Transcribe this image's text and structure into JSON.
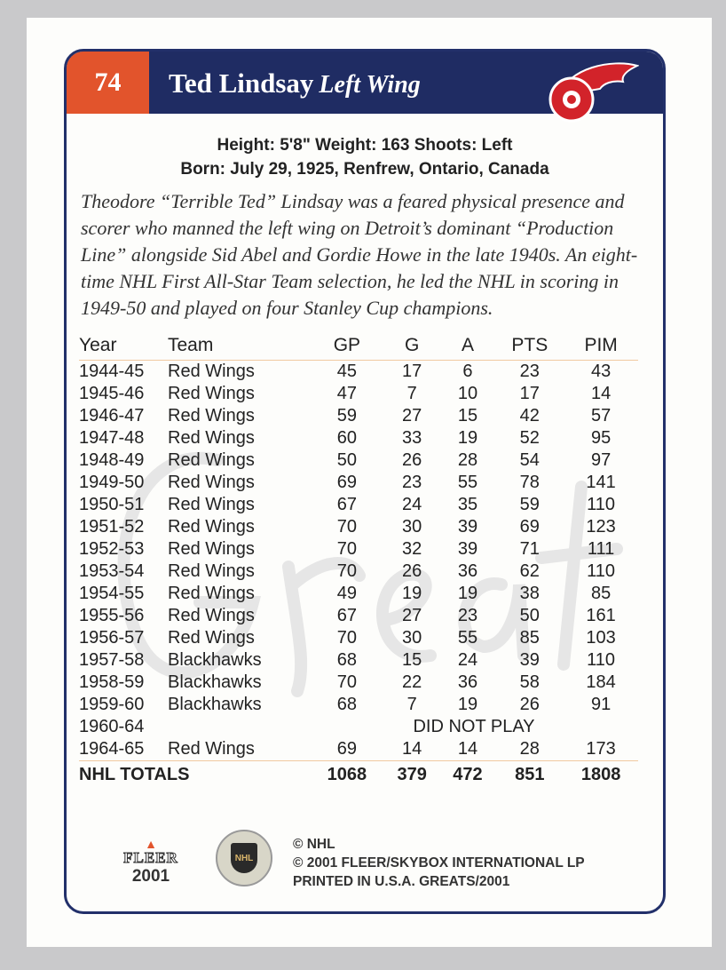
{
  "card": {
    "number": "74",
    "player_name": "Ted Lindsay",
    "position": "Left Wing",
    "info_line1": "Height: 5'8\"   Weight: 163   Shoots: Left",
    "info_line2": "Born: July 29, 1925, Renfrew, Ontario, Canada",
    "bio": "Theodore “Terrible Ted” Lindsay was a feared physical presence and scorer who manned the left wing on Detroit’s dominant “Production Line” alongside Sid Abel and Gordie Howe in the late 1940s. An eight-time NHL First All-Star Team selection, he led the NHL in scoring in 1949-50 and played on four Stanley Cup champions.",
    "watermark": "Greats",
    "colors": {
      "navy": "#1f2c63",
      "orange": "#e2542c",
      "red": "#d2232a"
    }
  },
  "stats": {
    "headers": [
      "Year",
      "Team",
      "GP",
      "G",
      "A",
      "PTS",
      "PIM"
    ],
    "rows": [
      [
        "1944-45",
        "Red Wings",
        "45",
        "17",
        "6",
        "23",
        "43"
      ],
      [
        "1945-46",
        "Red Wings",
        "47",
        "7",
        "10",
        "17",
        "14"
      ],
      [
        "1946-47",
        "Red Wings",
        "59",
        "27",
        "15",
        "42",
        "57"
      ],
      [
        "1947-48",
        "Red Wings",
        "60",
        "33",
        "19",
        "52",
        "95"
      ],
      [
        "1948-49",
        "Red Wings",
        "50",
        "26",
        "28",
        "54",
        "97"
      ],
      [
        "1949-50",
        "Red Wings",
        "69",
        "23",
        "55",
        "78",
        "141"
      ],
      [
        "1950-51",
        "Red Wings",
        "67",
        "24",
        "35",
        "59",
        "110"
      ],
      [
        "1951-52",
        "Red Wings",
        "70",
        "30",
        "39",
        "69",
        "123"
      ],
      [
        "1952-53",
        "Red Wings",
        "70",
        "32",
        "39",
        "71",
        "111"
      ],
      [
        "1953-54",
        "Red Wings",
        "70",
        "26",
        "36",
        "62",
        "110"
      ],
      [
        "1954-55",
        "Red Wings",
        "49",
        "19",
        "19",
        "38",
        "85"
      ],
      [
        "1955-56",
        "Red Wings",
        "67",
        "27",
        "23",
        "50",
        "161"
      ],
      [
        "1956-57",
        "Red Wings",
        "70",
        "30",
        "55",
        "85",
        "103"
      ],
      [
        "1957-58",
        "Blackhawks",
        "68",
        "15",
        "24",
        "39",
        "110"
      ],
      [
        "1958-59",
        "Blackhawks",
        "70",
        "22",
        "36",
        "58",
        "184"
      ],
      [
        "1959-60",
        "Blackhawks",
        "68",
        "7",
        "19",
        "26",
        "91"
      ]
    ],
    "dnp": {
      "year": "1960-64",
      "text": "DID NOT PLAY"
    },
    "last_row": [
      "1964-65",
      "Red Wings",
      "69",
      "14",
      "14",
      "28",
      "173"
    ],
    "totals": [
      "NHL TOTALS",
      "1068",
      "379",
      "472",
      "851",
      "1808"
    ]
  },
  "footer": {
    "brand": "FLEER",
    "year": "2001",
    "nhl_logo_text": "NHL",
    "line1": "© NHL",
    "line2": "© 2001 FLEER/SKYBOX INTERNATIONAL LP",
    "line3": "PRINTED IN U.S.A. GREATS/2001"
  }
}
